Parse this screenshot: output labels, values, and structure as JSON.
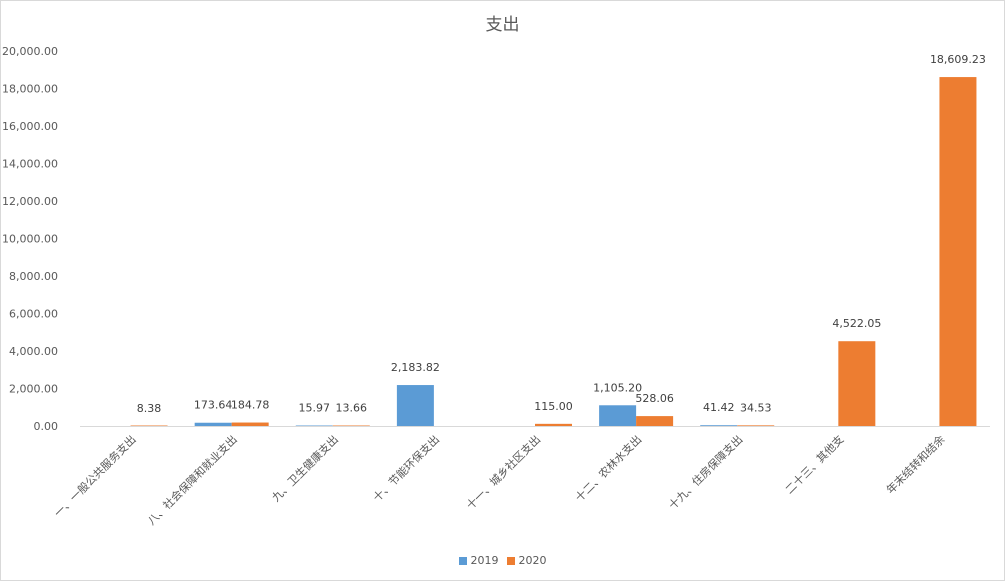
{
  "chart_data": {
    "type": "bar",
    "title": "支出",
    "categories": [
      "一、一般公共服务支出",
      "八、社会保障和就业支出",
      "九、卫生健康支出",
      "十、节能环保支出",
      "十一、城乡社区支出",
      "十二、农林水支出",
      "十九、住房保障支出",
      "二十三、其他支",
      "年末结转和结余"
    ],
    "series": [
      {
        "name": "2019",
        "color": "#5b9bd5",
        "values": [
          null,
          173.64,
          15.97,
          2183.82,
          null,
          1105.2,
          41.42,
          null,
          null
        ],
        "labels": [
          "",
          "173.64",
          "15.97",
          "2,183.82",
          "",
          "1,105.20",
          "41.42",
          "",
          ""
        ]
      },
      {
        "name": "2020",
        "color": "#ed7d31",
        "values": [
          8.38,
          184.78,
          13.66,
          null,
          115.0,
          528.06,
          34.53,
          4522.05,
          18609.23
        ],
        "labels": [
          "8.38",
          "184.78",
          "13.66",
          "",
          "115.00",
          "528.06",
          "34.53",
          "4,522.05",
          "18,609.23"
        ]
      }
    ],
    "ylim": [
      0,
      20000
    ],
    "yticks": [
      "0.00",
      "2,000.00",
      "4,000.00",
      "6,000.00",
      "8,000.00",
      "10,000.00",
      "12,000.00",
      "14,000.00",
      "16,000.00",
      "18,000.00",
      "20,000.00"
    ],
    "ytick_values": [
      0,
      2000,
      4000,
      6000,
      8000,
      10000,
      12000,
      14000,
      16000,
      18000,
      20000
    ],
    "grid": false,
    "legend_position": "bottom"
  }
}
